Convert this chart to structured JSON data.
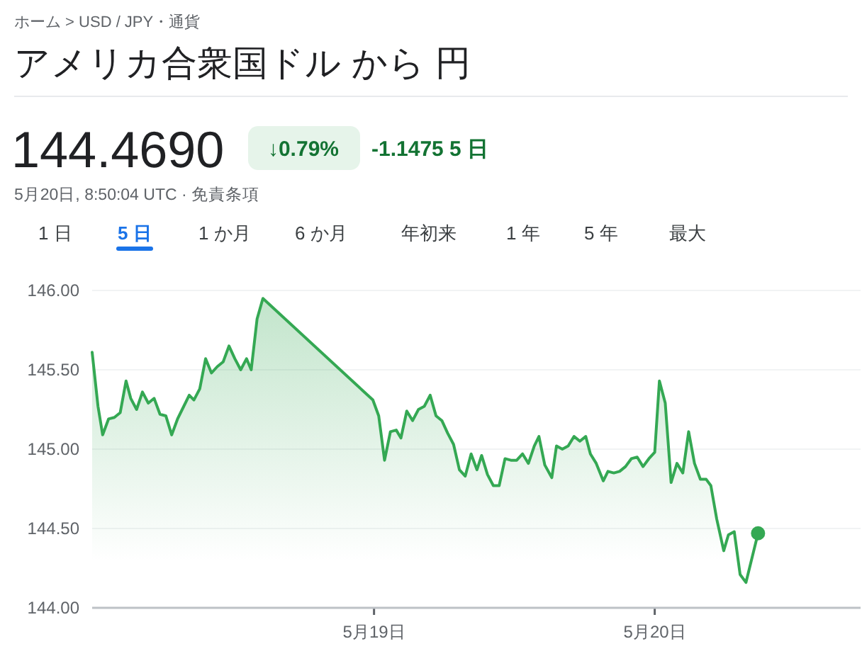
{
  "chart_data": {
    "type": "area",
    "title": "アメリカ合衆国ドル から 円",
    "annotations": [
      "ホーム > USD / JPY・通貨",
      "144.4690",
      "↓0.79%",
      "-1.1475 5 日",
      "5月20日, 8:50:04 UTC · 免責条項",
      "1 日",
      "5 日",
      "1 か月",
      "6 か月",
      "年初来",
      "1 年",
      "5 年",
      "最大"
    ],
    "xlim": [
      "--05-17T23:54",
      "--05-20T17:36"
    ],
    "xticks": [
      {
        "value": "--05-19T00:00",
        "label": "5月19日"
      },
      {
        "value": "--05-20T00:00",
        "label": "5月20日"
      }
    ],
    "ylim": [
      144,
      146
    ],
    "yticks": [
      {
        "value": 144,
        "label": "144.00"
      },
      {
        "value": 144.5,
        "label": "144.50"
      },
      {
        "value": 145,
        "label": "145.00"
      },
      {
        "value": 145.5,
        "label": "145.50"
      },
      {
        "value": 146,
        "label": "146.00"
      }
    ],
    "grid": "y",
    "series": [
      {
        "color": "#34a853",
        "x": [
          "--05-17T23:54",
          "--05-18T00:24",
          "--05-18T00:48",
          "--05-18T01:18",
          "--05-18T01:48",
          "--05-18T02:18",
          "--05-18T02:48",
          "--05-18T03:12",
          "--05-18T03:42",
          "--05-18T04:12",
          "--05-18T04:42",
          "--05-18T05:12",
          "--05-18T05:42",
          "--05-18T06:12",
          "--05-18T06:42",
          "--05-18T07:12",
          "--05-18T07:36",
          "--05-18T08:12",
          "--05-18T08:36",
          "--05-18T09:06",
          "--05-18T09:36",
          "--05-18T10:06",
          "--05-18T10:36",
          "--05-18T11:06",
          "--05-18T11:36",
          "--05-18T12:06",
          "--05-18T12:36",
          "--05-18T13:06",
          "--05-18T13:30",
          "--05-18T14:00",
          "--05-18T14:30",
          "--05-18T23:54",
          "--05-19T00:24",
          "--05-19T00:54",
          "--05-19T01:24",
          "--05-19T01:54",
          "--05-19T02:18",
          "--05-19T02:48",
          "--05-19T03:18",
          "--05-19T03:48",
          "--05-19T04:18",
          "--05-19T04:48",
          "--05-19T05:18",
          "--05-19T05:48",
          "--05-19T06:18",
          "--05-19T06:48",
          "--05-19T07:18",
          "--05-19T07:48",
          "--05-19T08:18",
          "--05-19T08:48",
          "--05-19T09:12",
          "--05-19T09:42",
          "--05-19T10:12",
          "--05-19T10:42",
          "--05-19T11:12",
          "--05-19T11:42",
          "--05-19T12:12",
          "--05-19T12:42",
          "--05-19T13:12",
          "--05-19T13:42",
          "--05-19T14:06",
          "--05-19T14:36",
          "--05-19T15:12",
          "--05-19T15:36",
          "--05-19T16:06",
          "--05-19T16:36",
          "--05-19T17:06",
          "--05-19T17:36",
          "--05-19T18:06",
          "--05-19T18:30",
          "--05-19T19:00",
          "--05-19T19:36",
          "--05-19T20:00",
          "--05-19T20:30",
          "--05-19T21:00",
          "--05-19T21:30",
          "--05-19T22:00",
          "--05-19T22:30",
          "--05-19T23:00",
          "--05-19T23:30",
          "--05-20T00:00",
          "--05-20T00:24",
          "--05-20T00:54",
          "--05-20T01:24",
          "--05-20T01:54",
          "--05-20T02:24",
          "--05-20T02:54",
          "--05-20T03:24",
          "--05-20T03:54",
          "--05-20T04:24",
          "--05-20T04:48",
          "--05-20T05:18",
          "--05-20T05:54",
          "--05-20T06:18",
          "--05-20T06:48",
          "--05-20T07:18",
          "--05-20T07:48",
          "--05-20T08:50"
        ],
        "values": [
          145.61,
          145.27,
          145.09,
          145.19,
          145.2,
          145.23,
          145.43,
          145.32,
          145.25,
          145.36,
          145.29,
          145.32,
          145.22,
          145.21,
          145.09,
          145.19,
          145.25,
          145.34,
          145.31,
          145.38,
          145.57,
          145.48,
          145.52,
          145.55,
          145.65,
          145.57,
          145.5,
          145.57,
          145.5,
          145.82,
          145.95,
          145.31,
          145.21,
          144.93,
          145.11,
          145.12,
          145.07,
          145.24,
          145.18,
          145.25,
          145.27,
          145.34,
          145.21,
          145.18,
          145.1,
          145.03,
          144.87,
          144.83,
          144.97,
          144.87,
          144.96,
          144.84,
          144.77,
          144.77,
          144.94,
          144.93,
          144.93,
          144.97,
          144.91,
          145.02,
          145.08,
          144.9,
          144.82,
          145.02,
          145.0,
          145.02,
          145.08,
          145.05,
          145.08,
          144.97,
          144.91,
          144.8,
          144.86,
          144.85,
          144.86,
          144.89,
          144.94,
          144.95,
          144.89,
          144.94,
          144.98,
          145.43,
          145.29,
          144.79,
          144.91,
          144.85,
          145.11,
          144.91,
          144.81,
          144.81,
          144.77,
          144.56,
          144.36,
          144.46,
          144.48,
          144.21,
          144.16,
          144.47
        ]
      },
      {
        "type": "scatter",
        "marker": "circle",
        "color": "#34a853",
        "x": [
          "--05-20T08:50"
        ],
        "values": [
          144.47
        ]
      }
    ]
  }
}
